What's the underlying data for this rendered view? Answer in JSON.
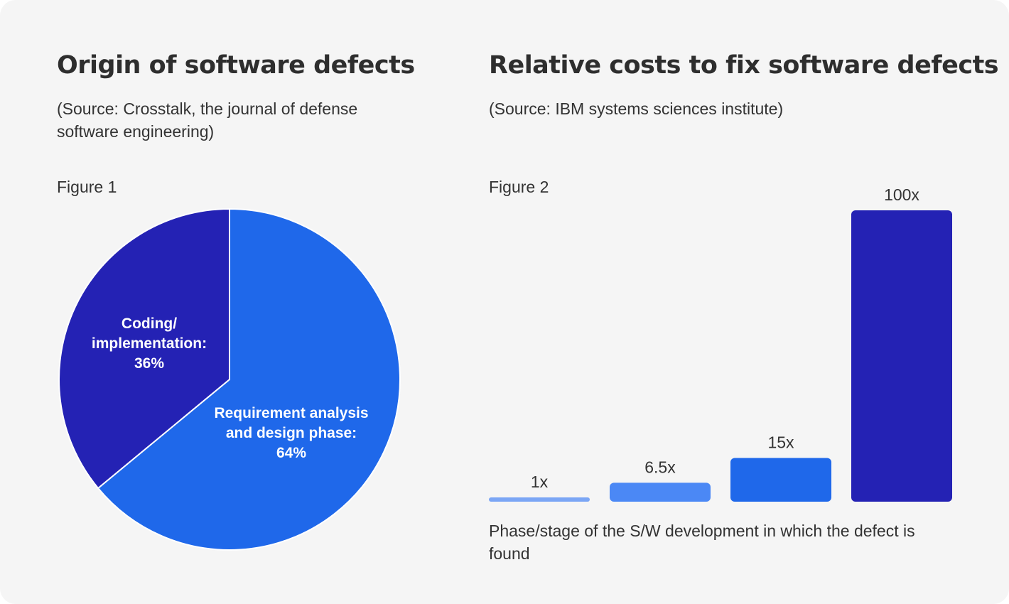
{
  "colors": {
    "coding": "#2422B4",
    "requirements": "#1F68EA",
    "bar_light": "#7BA6F5",
    "bar_mid": "#4B88F5",
    "bar_blue": "#1F68EA",
    "bar_dark": "#2422B4"
  },
  "chart_data": [
    {
      "type": "pie",
      "title": "Origin of software defects",
      "source": "(Source: Crosstalk, the journal of defense software engineering)",
      "figure_label": "Figure 1",
      "slices": [
        {
          "label_lines": [
            "Coding/",
            "implementation:",
            "36%"
          ],
          "value": 36,
          "color": "#2422B4"
        },
        {
          "label_lines": [
            "Requirement analysis",
            "and design phase:",
            "64%"
          ],
          "value": 64,
          "color": "#1F68EA"
        }
      ]
    },
    {
      "type": "bar",
      "title": "Relative costs to fix software defects",
      "source": "(Source: IBM systems sciences institute)",
      "figure_label": "Figure 2",
      "xlabel": "Phase/stage of the S/W development in which the defect is found",
      "ylim": [
        0,
        100
      ],
      "values": [
        1,
        6.5,
        15,
        100
      ],
      "data_labels": [
        "1x",
        "6.5x",
        "15x",
        "100x"
      ],
      "colors": [
        "#7BA6F5",
        "#4B88F5",
        "#1F68EA",
        "#2422B4"
      ]
    }
  ]
}
